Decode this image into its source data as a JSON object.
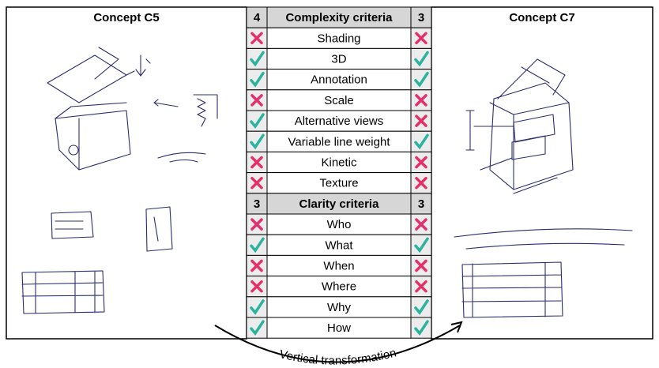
{
  "left_panel": {
    "title": "Concept C5"
  },
  "right_panel": {
    "title": "Concept C7"
  },
  "table": {
    "sections": [
      {
        "left_score": 4,
        "title": "Complexity criteria",
        "right_score": 3,
        "rows": [
          {
            "criterion": "Shading",
            "left": false,
            "right": false
          },
          {
            "criterion": "3D",
            "left": true,
            "right": true
          },
          {
            "criterion": "Annotation",
            "left": true,
            "right": true
          },
          {
            "criterion": "Scale",
            "left": false,
            "right": false
          },
          {
            "criterion": "Alternative views",
            "left": true,
            "right": false
          },
          {
            "criterion": "Variable line weight",
            "left": true,
            "right": true
          },
          {
            "criterion": "Kinetic",
            "left": false,
            "right": false
          },
          {
            "criterion": "Texture",
            "left": false,
            "right": false
          }
        ]
      },
      {
        "left_score": 3,
        "title": "Clarity criteria",
        "right_score": 3,
        "rows": [
          {
            "criterion": "Who",
            "left": false,
            "right": false
          },
          {
            "criterion": "What",
            "left": true,
            "right": true
          },
          {
            "criterion": "When",
            "left": false,
            "right": false
          },
          {
            "criterion": "Where",
            "left": false,
            "right": false
          },
          {
            "criterion": "Why",
            "left": true,
            "right": true
          },
          {
            "criterion": "How",
            "left": true,
            "right": true
          }
        ]
      }
    ]
  },
  "caption": "Vertical transformation"
}
